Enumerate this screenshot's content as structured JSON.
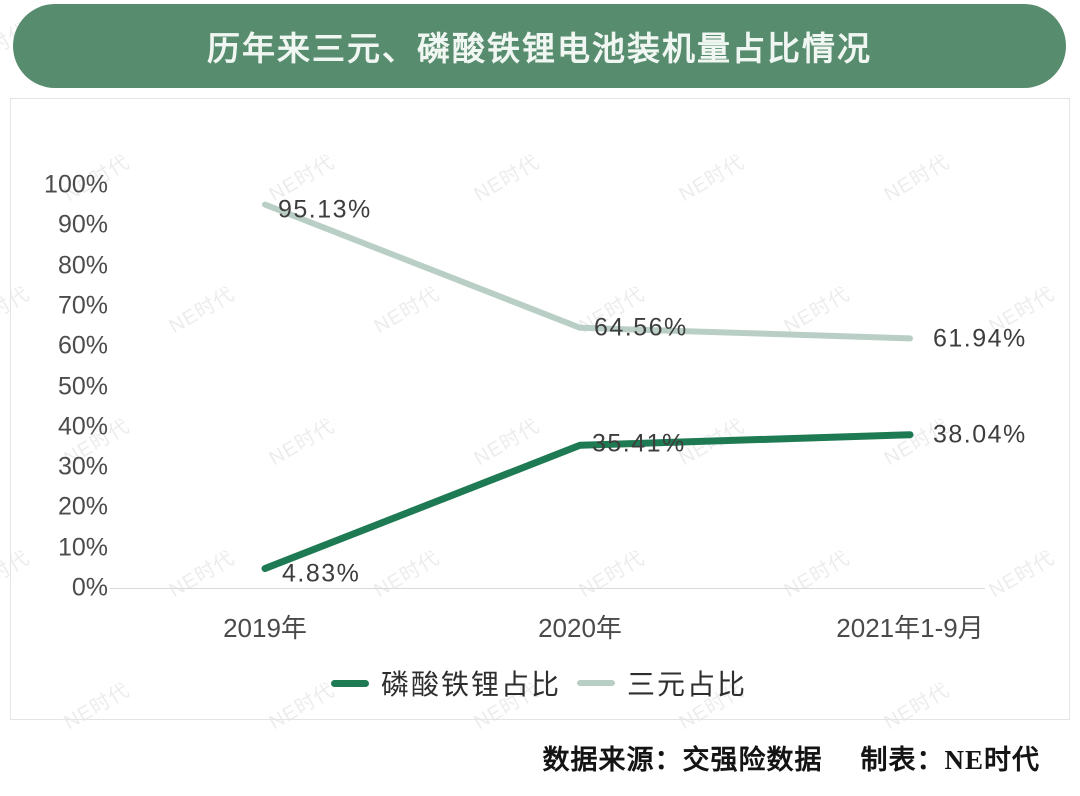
{
  "header": {
    "title": "历年来三元、磷酸铁锂电池装机量占比情况"
  },
  "footer": {
    "source": "数据来源：交强险数据",
    "credit": "制表：NE时代"
  },
  "watermark": {
    "text": "NE时代"
  },
  "colors": {
    "banner": "#588c6f",
    "lfp_line": "#1e7a52",
    "ternary_line": "#b9cfc5"
  },
  "chart_data": {
    "type": "line",
    "title": "历年来三元、磷酸铁锂电池装机量占比情况",
    "categories": [
      "2019年",
      "2020年",
      "2021年1-9月"
    ],
    "series": [
      {
        "name": "磷酸铁锂占比",
        "values": [
          4.83,
          35.41,
          38.04
        ],
        "labels": [
          "4.83%",
          "35.41%",
          "38.04%"
        ],
        "color": "#1e7a52"
      },
      {
        "name": "三元占比",
        "values": [
          95.13,
          64.56,
          61.94
        ],
        "labels": [
          "95.13%",
          "64.56%",
          "61.94%"
        ],
        "color": "#b9cfc5"
      }
    ],
    "xlabel": "",
    "ylabel": "",
    "ylim": [
      0,
      100
    ],
    "yticks": [
      "100%",
      "90%",
      "80%",
      "70%",
      "60%",
      "50%",
      "40%",
      "30%",
      "20%",
      "10%",
      "0%"
    ],
    "grid": false,
    "legend_position": "bottom"
  }
}
